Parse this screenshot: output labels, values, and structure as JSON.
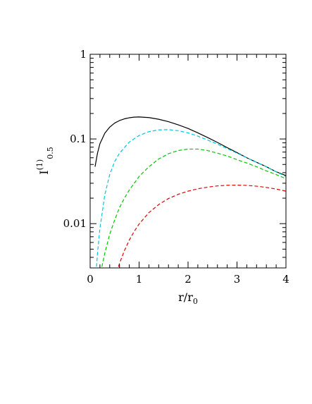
{
  "chart_data": {
    "type": "line",
    "x_scale": "linear",
    "y_scale": "log",
    "xlim": [
      0,
      4
    ],
    "ylim": [
      0.003,
      1
    ],
    "grid": false,
    "legend": "none",
    "xlabel": {
      "main": "r/r",
      "sub": "0"
    },
    "ylabel": {
      "main": "I",
      "sup": "(1)",
      "sub": "0.5"
    },
    "x_ticks": [
      {
        "value": 0,
        "label": "0"
      },
      {
        "value": 1,
        "label": "1"
      },
      {
        "value": 2,
        "label": "2"
      },
      {
        "value": 3,
        "label": "3"
      },
      {
        "value": 4,
        "label": "4"
      }
    ],
    "y_ticks": [
      {
        "value": 0.01,
        "label": "0.01"
      },
      {
        "value": 0.1,
        "label": "0.1"
      },
      {
        "value": 1,
        "label": "1"
      }
    ],
    "series": [
      {
        "color": "#000000",
        "dash": "solid",
        "x": [
          0.1,
          0.15,
          0.2,
          0.3,
          0.4,
          0.5,
          0.6,
          0.7,
          0.8,
          0.9,
          1.0,
          1.2,
          1.4,
          1.6,
          1.8,
          2.0,
          2.2,
          2.4,
          2.6,
          2.8,
          3.0,
          3.2,
          3.4,
          3.6,
          3.8,
          4.0
        ],
        "y": [
          0.047,
          0.068,
          0.088,
          0.117,
          0.138,
          0.154,
          0.165,
          0.173,
          0.178,
          0.181,
          0.182,
          0.179,
          0.171,
          0.16,
          0.147,
          0.133,
          0.118,
          0.104,
          0.091,
          0.079,
          0.069,
          0.06,
          0.053,
          0.047,
          0.041,
          0.037
        ]
      },
      {
        "color": "#00c8e0",
        "dash": "dashed",
        "x": [
          0.13,
          0.15,
          0.2,
          0.3,
          0.4,
          0.5,
          0.6,
          0.8,
          1.0,
          1.2,
          1.4,
          1.6,
          1.8,
          2.0,
          2.2,
          2.4,
          2.6,
          2.8,
          3.0,
          3.2,
          3.4,
          3.6,
          3.8,
          4.0
        ],
        "y": [
          0.0031,
          0.0045,
          0.0088,
          0.022,
          0.038,
          0.054,
          0.068,
          0.092,
          0.11,
          0.122,
          0.128,
          0.129,
          0.125,
          0.118,
          0.108,
          0.097,
          0.087,
          0.077,
          0.068,
          0.06,
          0.053,
          0.047,
          0.041,
          0.036
        ]
      },
      {
        "color": "#00c800",
        "dash": "dashed",
        "x": [
          0.24,
          0.3,
          0.4,
          0.5,
          0.6,
          0.7,
          0.8,
          1.0,
          1.2,
          1.4,
          1.6,
          1.8,
          2.0,
          2.2,
          2.4,
          2.6,
          2.8,
          3.0,
          3.2,
          3.4,
          3.6,
          3.8,
          4.0
        ],
        "y": [
          0.0031,
          0.0045,
          0.0075,
          0.011,
          0.0155,
          0.02,
          0.025,
          0.036,
          0.047,
          0.058,
          0.067,
          0.073,
          0.076,
          0.076,
          0.073,
          0.068,
          0.063,
          0.057,
          0.052,
          0.047,
          0.042,
          0.038,
          0.034
        ]
      },
      {
        "color": "#e00000",
        "dash": "dashed",
        "x": [
          0.58,
          0.6,
          0.7,
          0.8,
          0.9,
          1.0,
          1.2,
          1.4,
          1.6,
          1.8,
          2.0,
          2.2,
          2.4,
          2.6,
          2.8,
          3.0,
          3.2,
          3.4,
          3.6,
          3.8,
          4.0
        ],
        "y": [
          0.0031,
          0.0034,
          0.0048,
          0.0064,
          0.0081,
          0.0099,
          0.0135,
          0.0168,
          0.0198,
          0.0222,
          0.0242,
          0.0258,
          0.027,
          0.0279,
          0.0284,
          0.0285,
          0.0283,
          0.0277,
          0.0268,
          0.0256,
          0.0242
        ]
      }
    ]
  }
}
